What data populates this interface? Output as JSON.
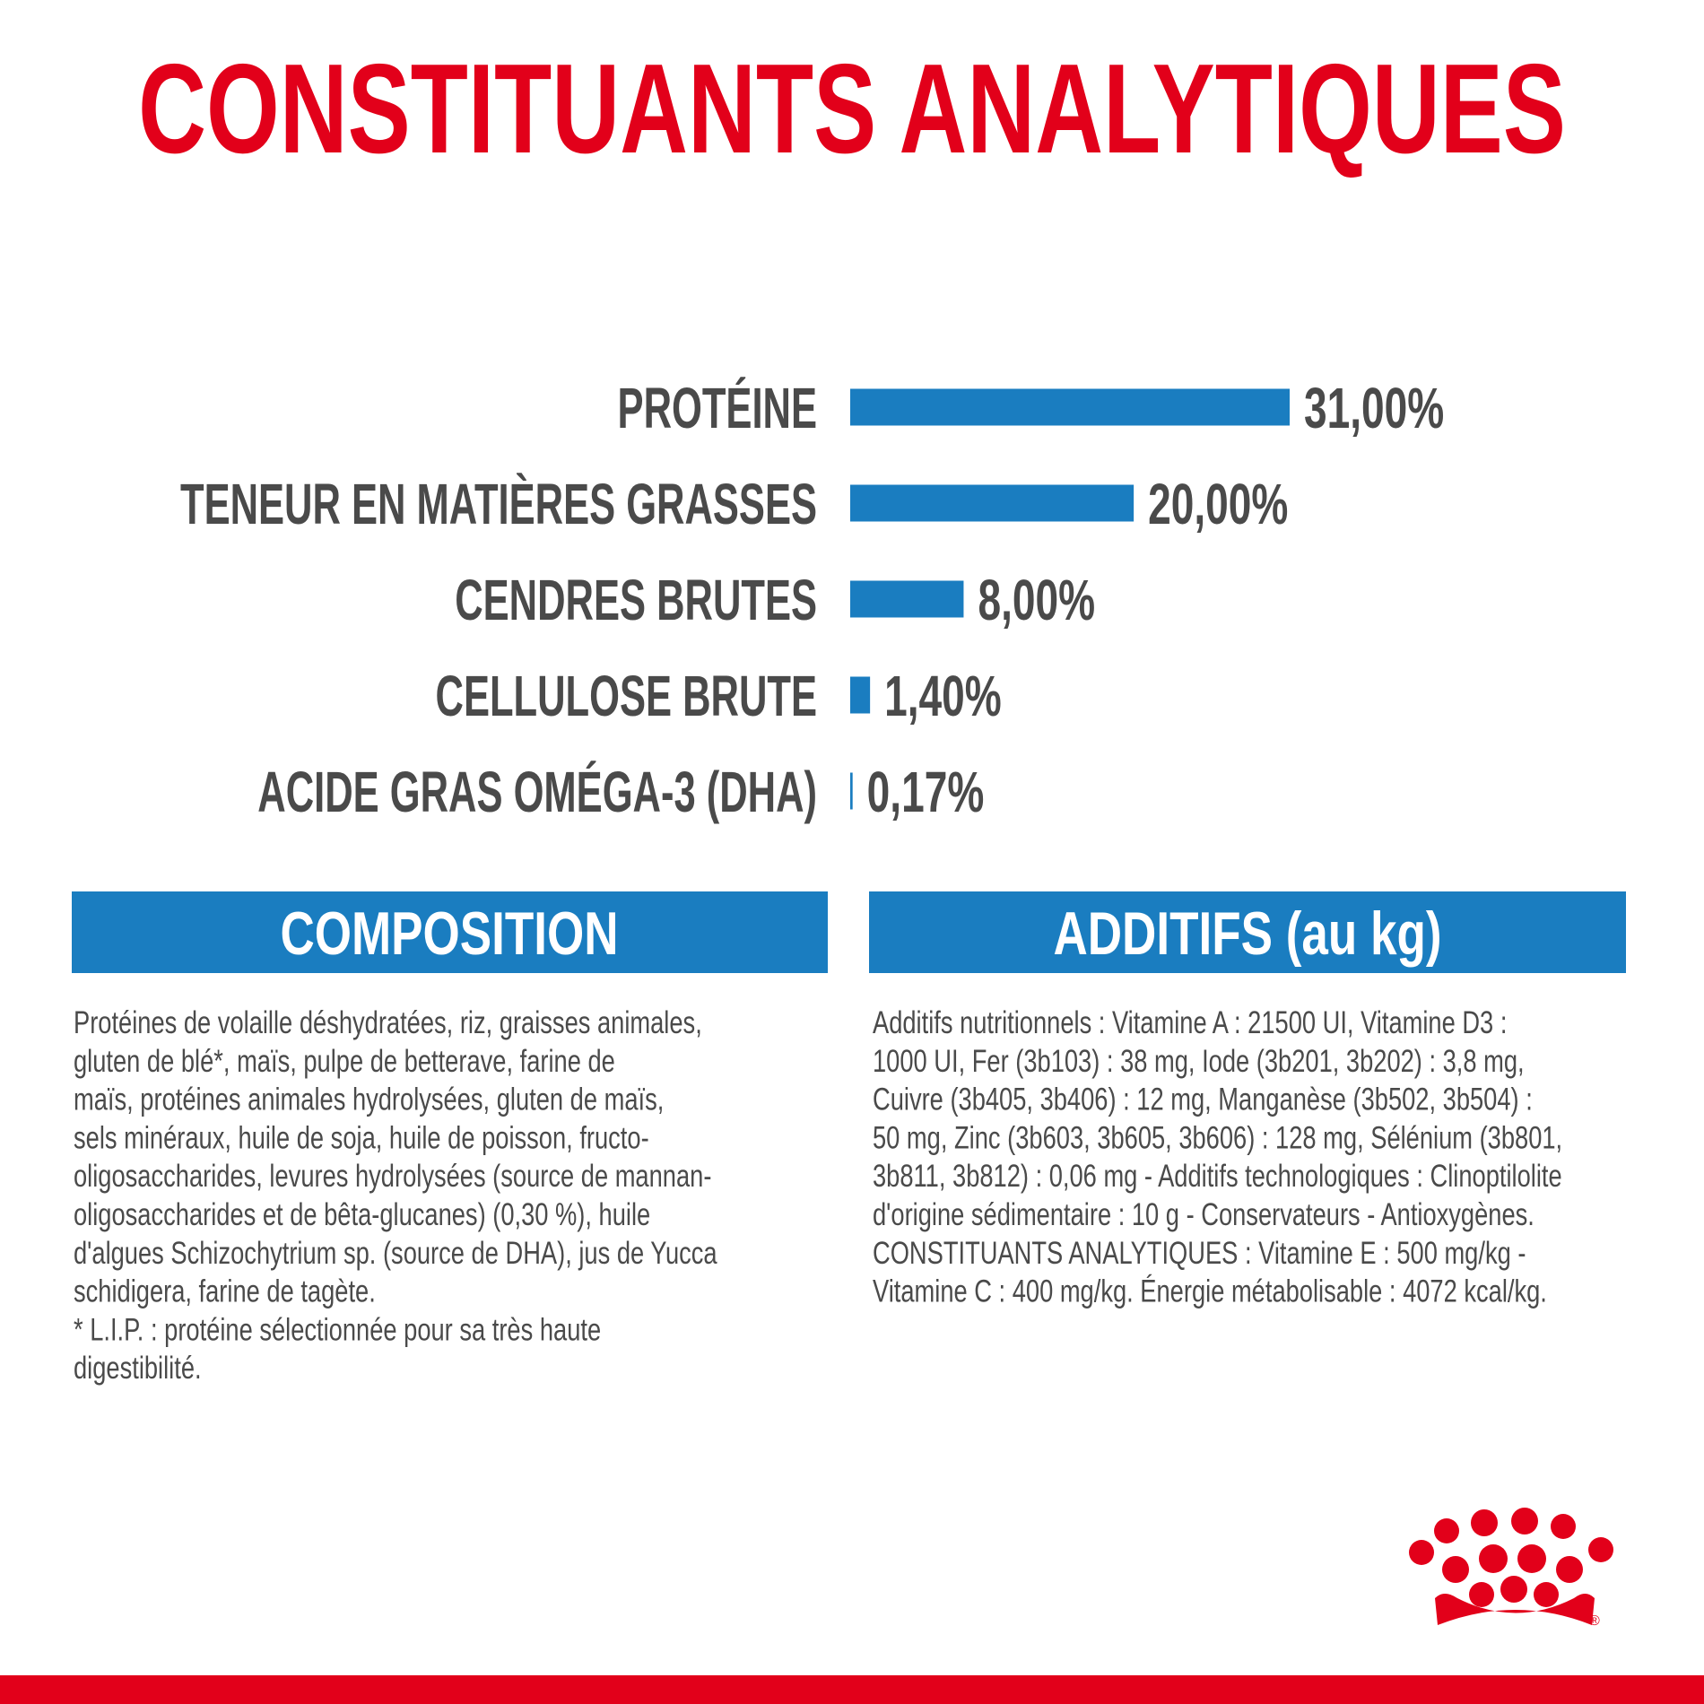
{
  "chart_data": {
    "type": "bar",
    "orientation": "horizontal",
    "title": "CONSTITUANTS ANALYTIQUES",
    "categories": [
      "PROTÉINE",
      "TENEUR EN MATIÈRES GRASSES",
      "CENDRES BRUTES",
      "CELLULOSE BRUTE",
      "ACIDE GRAS OMÉGA-3 (DHA)"
    ],
    "values": [
      31,
      20,
      8,
      1.4,
      0.17
    ],
    "value_labels": [
      "31,00%",
      "20,00%",
      "8,00%",
      "1,40%",
      "0,17%"
    ],
    "color": "#1a7dc0"
  },
  "composition": {
    "title": "COMPOSITION",
    "lines": [
      "Protéines de volaille déshydratées, riz, graisses animales,",
      "gluten de blé*, maïs, pulpe de betterave, farine de",
      "maïs, protéines animales hydrolysées, gluten de maïs,",
      "sels minéraux, huile de soja, huile de poisson, fructo-",
      "oligosaccharides, levures hydrolysées (source de mannan-",
      "oligosaccharides et de bêta-glucanes) (0,30 %), huile",
      "d'algues Schizochytrium sp. (source de DHA), jus de Yucca",
      "schidigera, farine de tagète.",
      "* L.I.P. : protéine sélectionnée pour sa très haute",
      "digestibilité."
    ]
  },
  "additifs": {
    "title": "ADDITIFS (au kg)",
    "lines": [
      "Additifs nutritionnels : Vitamine A : 21500 UI, Vitamine D3 :",
      "1000 UI, Fer (3b103) : 38 mg, Iode (3b201, 3b202) : 3,8 mg,",
      "Cuivre (3b405, 3b406) : 12 mg, Manganèse (3b502, 3b504) :",
      "50 mg, Zinc (3b603, 3b605, 3b606) : 128 mg, Sélénium (3b801,",
      "3b811, 3b812) : 0,06 mg - Additifs technologiques : Clinoptilolite",
      "d'origine sédimentaire : 10 g - Conservateurs - Antioxygènes.",
      "CONSTITUANTS ANALYTIQUES : Vitamine E : 500 mg/kg -",
      "Vitamine C : 400 mg/kg. Énergie métabolisable : 4072 kcal/kg."
    ]
  },
  "logo": {
    "mark": "®"
  }
}
